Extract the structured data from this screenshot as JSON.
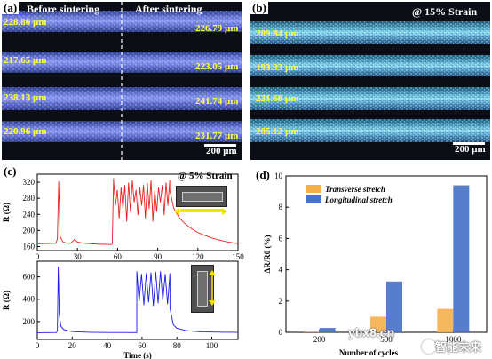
{
  "panel_a": {
    "label": "(a)",
    "left_title": "Before sintering",
    "right_title": "After sintering",
    "before": [
      "228.86 μm",
      "217.65 μm",
      "238.13 μm",
      "220.96 μm"
    ],
    "after": [
      "226.79 μm",
      "223.05 μm",
      "241.74 μm",
      "231.77 μm"
    ],
    "scale": "200 μm"
  },
  "panel_b": {
    "label": "(b)",
    "title": "@ 15% Strain",
    "widths": [
      "209.84 μm",
      "193.33 μm",
      "221.68 μm",
      "205.12 μm"
    ],
    "scale": "200 μm"
  },
  "panel_c": {
    "label": "(c)",
    "annotation": "@ 5% Strain"
  },
  "panel_d": {
    "label": "(d)"
  },
  "watermarks": {
    "site": "ybx8.cn",
    "brand": "智能未来"
  },
  "chart_data": [
    {
      "id": "c-top",
      "type": "line",
      "xlabel": "",
      "ylabel": "R (Ω)",
      "xlim": [
        0,
        150
      ],
      "ylim": [
        150,
        340
      ],
      "xticks": [
        0,
        30,
        60,
        90,
        120,
        150
      ],
      "yticks": [
        160,
        200,
        240,
        280,
        320
      ],
      "color": "#e8231e",
      "series": [
        {
          "x": [
            0,
            14,
            15,
            16,
            17,
            19,
            22,
            25,
            28,
            30,
            35,
            45,
            55,
            56,
            57
          ],
          "values": [
            167,
            168,
            180,
            322,
            185,
            172,
            168,
            168,
            178,
            171,
            168,
            166,
            165,
            166,
            330
          ]
        }
      ],
      "oscillation": {
        "x_start": 57,
        "x_end": 99,
        "high": 325,
        "low": 222
      },
      "decay": {
        "x": [
          99,
          102,
          106,
          110,
          115,
          120,
          125,
          130,
          135,
          140,
          145,
          150
        ],
        "values": [
          300,
          255,
          232,
          218,
          205,
          195,
          188,
          182,
          177,
          173,
          170,
          167
        ]
      }
    },
    {
      "id": "c-bottom",
      "type": "line",
      "xlabel": "Time (s)",
      "ylabel": "R (Ω)",
      "xlim": [
        0,
        115
      ],
      "ylim": [
        40,
        740
      ],
      "xticks": [
        0,
        20,
        40,
        60,
        80,
        100
      ],
      "yticks": [
        200,
        400,
        600
      ],
      "color": "#1a1ae8",
      "series": [
        {
          "x": [
            0,
            11,
            11.5,
            12,
            12.6,
            13.5,
            15,
            18,
            22,
            30,
            40,
            50,
            56,
            57
          ],
          "values": [
            100,
            102,
            120,
            690,
            260,
            160,
            130,
            115,
            108,
            104,
            102,
            102,
            101,
            102
          ]
        }
      ],
      "oscillation": {
        "x_start": 57,
        "x_end": 76,
        "high": 650,
        "low": 340
      },
      "decay": {
        "x": [
          76,
          78,
          80,
          85,
          90,
          95,
          100,
          105,
          110,
          115
        ],
        "values": [
          320,
          170,
          140,
          120,
          112,
          108,
          106,
          105,
          104,
          104
        ]
      }
    },
    {
      "id": "d",
      "type": "bar",
      "xlabel": "Number of cycles",
      "ylabel": "ΔR/R0 (%)",
      "categories": [
        "200",
        "500",
        "1000"
      ],
      "ylim": [
        0,
        10
      ],
      "yticks": [
        0,
        2,
        4,
        6,
        8,
        10
      ],
      "series": [
        {
          "name": "Transverse stretch",
          "values": [
            0.08,
            1.0,
            1.5
          ],
          "color": "#f5b04a"
        },
        {
          "name": "Longitudinal stretch",
          "values": [
            0.28,
            3.25,
            9.4
          ],
          "color": "#4a72c8"
        }
      ],
      "legend": "top-left"
    }
  ]
}
